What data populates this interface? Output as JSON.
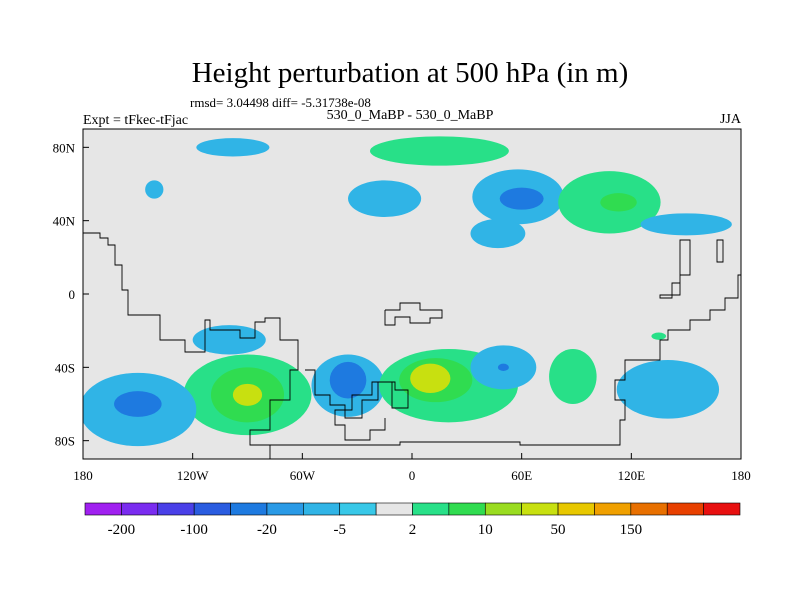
{
  "chart_data": {
    "type": "heatmap",
    "title": "Height perturbation at 500 hPa (in m)",
    "stats_line": "rmsd= 3.04498 diff= -5.31738e-08",
    "left_label": "Expt = tFkec-tFjac",
    "center_label": "530_0_MaBP - 530_0_MaBP",
    "right_label": "JJA",
    "lon_range": [
      -180,
      180
    ],
    "lat_range": [
      -90,
      90
    ],
    "x_ticks": [
      {
        "value": -180,
        "label": "180"
      },
      {
        "value": -120,
        "label": "120W"
      },
      {
        "value": -60,
        "label": "60W"
      },
      {
        "value": 0,
        "label": "0"
      },
      {
        "value": 60,
        "label": "60E"
      },
      {
        "value": 120,
        "label": "120E"
      },
      {
        "value": 180,
        "label": "180"
      }
    ],
    "y_ticks": [
      {
        "value": 80,
        "label": "80N"
      },
      {
        "value": 40,
        "label": "40N"
      },
      {
        "value": 0,
        "label": "0"
      },
      {
        "value": -40,
        "label": "40S"
      },
      {
        "value": -80,
        "label": "80S"
      }
    ],
    "background_color": "#e6e6e6",
    "colorbar": {
      "colors": [
        "#a020f0",
        "#7a2cf0",
        "#4a40e8",
        "#2a5ce0",
        "#1e7ae0",
        "#2a9ae6",
        "#30b4e6",
        "#38c8e8",
        "#e6e6e6",
        "#28e088",
        "#30dc50",
        "#9adc20",
        "#c8e010",
        "#e8c800",
        "#f0a000",
        "#e87000",
        "#e84000",
        "#e81010"
      ],
      "labels": [
        "-200",
        "-100",
        "-20",
        "-5",
        "2",
        "10",
        "50",
        "150"
      ],
      "label_positions": [
        1,
        3,
        5,
        7,
        9,
        11,
        13,
        15
      ]
    },
    "regions": [
      {
        "level": "-5",
        "color": "#30b4e6",
        "lon": -98,
        "lat": 80,
        "rlon": 20,
        "rlat": 5
      },
      {
        "level": "-5",
        "color": "#30b4e6",
        "lon": -141,
        "lat": 57,
        "rlon": 5,
        "rlat": 5
      },
      {
        "level": "2",
        "color": "#28e088",
        "lon": 15,
        "lat": 78,
        "rlon": 38,
        "rlat": 8
      },
      {
        "level": "-5",
        "color": "#30b4e6",
        "lon": 58,
        "lat": 53,
        "rlon": 25,
        "rlat": 15
      },
      {
        "level": "-20",
        "color": "#1e7ae0",
        "lon": 60,
        "lat": 52,
        "rlon": 12,
        "rlat": 6
      },
      {
        "level": "-5",
        "color": "#30b4e6",
        "lon": -15,
        "lat": 52,
        "rlon": 20,
        "rlat": 10
      },
      {
        "level": "-5",
        "color": "#30b4e6",
        "lon": 47,
        "lat": 33,
        "rlon": 15,
        "rlat": 8
      },
      {
        "level": "2",
        "color": "#28e088",
        "lon": 108,
        "lat": 50,
        "rlon": 28,
        "rlat": 17
      },
      {
        "level": "10",
        "color": "#30dc50",
        "lon": 113,
        "lat": 50,
        "rlon": 10,
        "rlat": 5
      },
      {
        "level": "-5",
        "color": "#30b4e6",
        "lon": 150,
        "lat": 38,
        "rlon": 25,
        "rlat": 6
      },
      {
        "level": "-5",
        "color": "#30b4e6",
        "lon": -100,
        "lat": -25,
        "rlon": 20,
        "rlat": 8
      },
      {
        "level": "2",
        "color": "#28e088",
        "lon": -90,
        "lat": -55,
        "rlon": 35,
        "rlat": 22
      },
      {
        "level": "10",
        "color": "#30dc50",
        "lon": -90,
        "lat": -55,
        "rlon": 20,
        "rlat": 15
      },
      {
        "level": "50",
        "color": "#c8e010",
        "lon": -90,
        "lat": -55,
        "rlon": 8,
        "rlat": 6
      },
      {
        "level": "-5",
        "color": "#30b4e6",
        "lon": -150,
        "lat": -63,
        "rlon": 32,
        "rlat": 20
      },
      {
        "level": "-20",
        "color": "#1e7ae0",
        "lon": -150,
        "lat": -60,
        "rlon": 13,
        "rlat": 7
      },
      {
        "level": "-5",
        "color": "#30b4e6",
        "lon": -35,
        "lat": -50,
        "rlon": 20,
        "rlat": 17
      },
      {
        "level": "-20",
        "color": "#1e7ae0",
        "lon": -35,
        "lat": -47,
        "rlon": 10,
        "rlat": 10
      },
      {
        "level": "2",
        "color": "#28e088",
        "lon": 20,
        "lat": -50,
        "rlon": 38,
        "rlat": 20
      },
      {
        "level": "10",
        "color": "#30dc50",
        "lon": 13,
        "lat": -47,
        "rlon": 20,
        "rlat": 12
      },
      {
        "level": "50",
        "color": "#c8e010",
        "lon": 10,
        "lat": -46,
        "rlon": 11,
        "rlat": 8
      },
      {
        "level": "-5",
        "color": "#30b4e6",
        "lon": 50,
        "lat": -40,
        "rlon": 18,
        "rlat": 12
      },
      {
        "level": "-20",
        "color": "#1e7ae0",
        "lon": 50,
        "lat": -40,
        "rlon": 3,
        "rlat": 2
      },
      {
        "level": "2",
        "color": "#28e088",
        "lon": 88,
        "lat": -45,
        "rlon": 13,
        "rlat": 15
      },
      {
        "level": "-5",
        "color": "#30b4e6",
        "lon": 140,
        "lat": -52,
        "rlon": 28,
        "rlat": 16
      },
      {
        "level": "2",
        "color": "#28e088",
        "lon": 135,
        "lat": -23,
        "rlon": 4,
        "rlat": 2
      }
    ]
  }
}
